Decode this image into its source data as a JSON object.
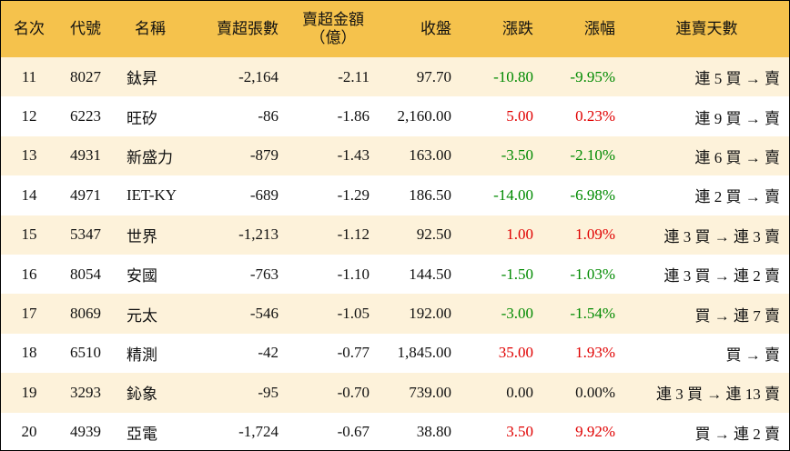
{
  "table": {
    "header": [
      "名次",
      "代號",
      "名稱",
      "賣超張數",
      "賣超金額\n（億）",
      "收盤",
      "漲跌",
      "漲幅",
      "連賣天數"
    ],
    "rows": [
      [
        "11",
        "8027",
        "鈦昇",
        "-2,164",
        "-2.11",
        "97.70",
        "-10.80",
        "-9.95%",
        "連 5 買 → 賣"
      ],
      [
        "12",
        "6223",
        "旺矽",
        "-86",
        "-1.86",
        "2,160.00",
        "5.00",
        "0.23%",
        "連 9 買 → 賣"
      ],
      [
        "13",
        "4931",
        "新盛力",
        "-879",
        "-1.43",
        "163.00",
        "-3.50",
        "-2.10%",
        "連 6 買 → 賣"
      ],
      [
        "14",
        "4971",
        "IET-KY",
        "-689",
        "-1.29",
        "186.50",
        "-14.00",
        "-6.98%",
        "連 2 買 → 賣"
      ],
      [
        "15",
        "5347",
        "世界",
        "-1,213",
        "-1.12",
        "92.50",
        "1.00",
        "1.09%",
        "連 3 買 → 連 3 賣"
      ],
      [
        "16",
        "8054",
        "安國",
        "-763",
        "-1.10",
        "144.50",
        "-1.50",
        "-1.03%",
        "連 3 買 → 連 2 賣"
      ],
      [
        "17",
        "8069",
        "元太",
        "-546",
        "-1.05",
        "192.00",
        "-3.00",
        "-1.54%",
        "買 → 連 7 賣"
      ],
      [
        "18",
        "6510",
        "精測",
        "-42",
        "-0.77",
        "1,845.00",
        "35.00",
        "1.93%",
        "買 → 賣"
      ],
      [
        "19",
        "3293",
        "鈊象",
        "-95",
        "-0.70",
        "739.00",
        "0.00",
        "0.00%",
        "連 3 買 → 連 13 賣"
      ],
      [
        "20",
        "4939",
        "亞電",
        "-1,724",
        "-0.67",
        "38.80",
        "3.50",
        "9.92%",
        "買 → 連 2 賣"
      ]
    ]
  }
}
